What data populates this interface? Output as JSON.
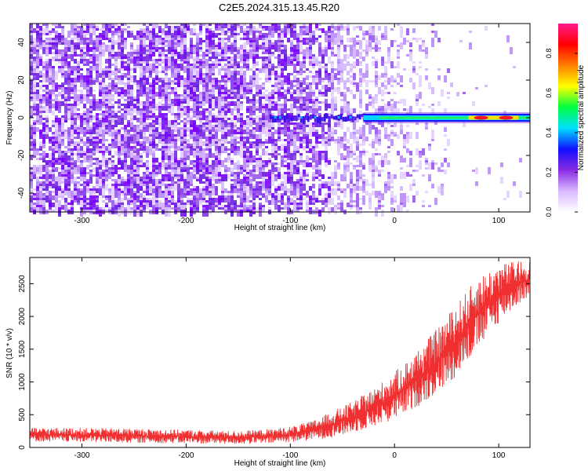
{
  "title": "C2E5.2024.315.13.45.R20",
  "chart_data": [
    {
      "type": "heatmap",
      "xlabel": "Height of straight line (km)",
      "ylabel": "Frequency (Hz)",
      "xlim": [
        -350,
        130
      ],
      "ylim": [
        -50,
        50
      ],
      "x_ticks": [
        -300,
        -200,
        -100,
        0,
        100
      ],
      "y_ticks": [
        -40,
        -20,
        0,
        20,
        40
      ],
      "colorbar": {
        "label": "Normalized spectral amplitude",
        "range": [
          0.0,
          0.95
        ],
        "ticks": [
          "0.0",
          "0.2",
          "0.4",
          "0.6",
          "0.8"
        ],
        "colors": [
          "#ffffff",
          "#d8b8ff",
          "#8a2be2",
          "#1010ff",
          "#00e0ff",
          "#00ff40",
          "#ffff00",
          "#ff8000",
          "#ff0000",
          "#ff1a8c"
        ]
      },
      "signal_band": {
        "frequency_hz": 0,
        "x_start": -120,
        "x_end": 130,
        "peak_region": [
          80,
          110
        ],
        "peak_amplitude": 0.9
      },
      "grid": false
    },
    {
      "type": "line",
      "xlabel": "Height of straight line (km)",
      "ylabel": "SNR (10 * v/v)",
      "xlim": [
        -350,
        130
      ],
      "ylim": [
        0,
        2900
      ],
      "x_ticks": [
        -300,
        -200,
        -100,
        0,
        100
      ],
      "y_ticks": [
        0,
        500,
        1000,
        1500,
        2000,
        2500
      ],
      "series_color": "#f03030",
      "envelope": {
        "x": [
          -350,
          -300,
          -250,
          -200,
          -150,
          -120,
          -100,
          -80,
          -60,
          -40,
          -20,
          0,
          20,
          40,
          60,
          80,
          100,
          120,
          130
        ],
        "low": [
          90,
          80,
          70,
          60,
          50,
          60,
          80,
          110,
          150,
          220,
          320,
          420,
          600,
          800,
          1100,
          1500,
          1900,
          2200,
          2300
        ],
        "high": [
          300,
          300,
          290,
          270,
          250,
          280,
          320,
          400,
          550,
          700,
          900,
          1150,
          1450,
          1800,
          2200,
          2600,
          2800,
          2850,
          2850
        ]
      },
      "grid": false
    }
  ]
}
